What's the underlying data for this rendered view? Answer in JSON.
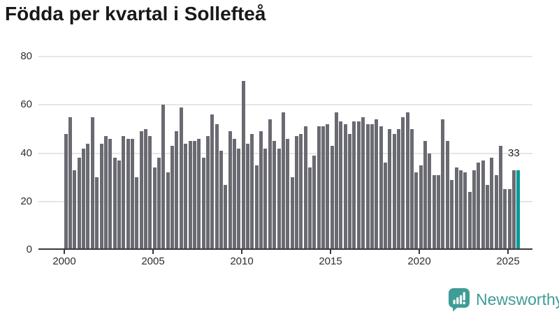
{
  "title": "Födda per kvartal i Sollefteå",
  "chart_data": {
    "type": "bar",
    "title": "Födda per kvartal i Sollefteå",
    "x_start": "2000-Q1",
    "frequency": "quarterly",
    "x_tick_labels": [
      "2000",
      "2005",
      "2010",
      "2015",
      "2020",
      "2025"
    ],
    "y_tick_labels": [
      "0",
      "20",
      "40",
      "60",
      "80"
    ],
    "ylim": [
      0,
      80
    ],
    "grid": true,
    "legend": "none",
    "bar_color": "#6A6A72",
    "highlight_color": "#009B94",
    "highlight_index": 102,
    "last_value_label": "33",
    "series": [
      {
        "name": "Födda",
        "values": [
          48,
          55,
          33,
          38,
          42,
          44,
          55,
          30,
          44,
          47,
          46,
          38,
          37,
          47,
          46,
          46,
          30,
          49,
          50,
          47,
          34,
          38,
          60,
          32,
          43,
          49,
          59,
          44,
          45,
          45,
          46,
          38,
          47,
          56,
          52,
          41,
          27,
          49,
          46,
          42,
          70,
          44,
          48,
          35,
          49,
          42,
          54,
          45,
          42,
          57,
          46,
          30,
          47,
          48,
          51,
          34,
          39,
          51,
          51,
          52,
          43,
          57,
          53,
          52,
          48,
          53,
          53,
          55,
          52,
          52,
          54,
          51,
          36,
          50,
          48,
          50,
          55,
          57,
          50,
          32,
          35,
          45,
          40,
          31,
          31,
          54,
          45,
          29,
          34,
          33,
          32,
          24,
          33,
          36,
          37,
          27,
          38,
          31,
          43,
          25,
          25,
          33,
          33
        ]
      }
    ]
  },
  "footer": {
    "brand": "Newsworthy",
    "logo_color": "#3F9C96"
  }
}
